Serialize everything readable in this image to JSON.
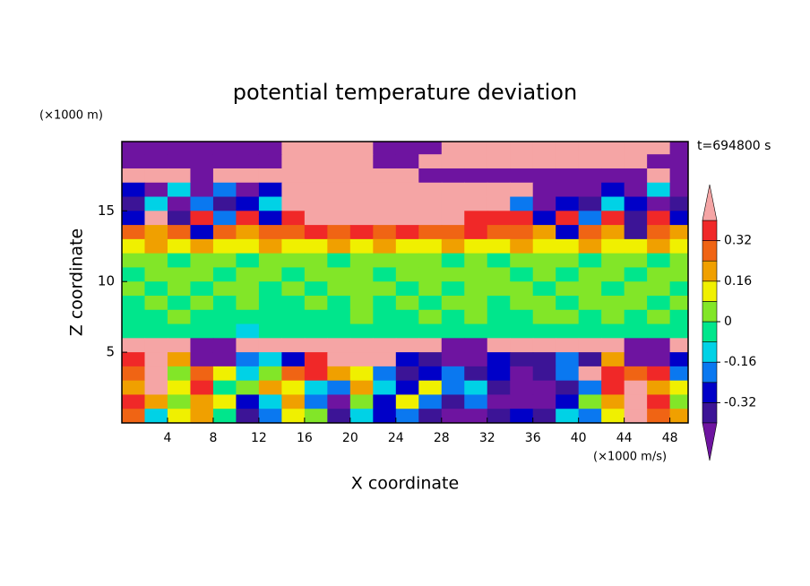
{
  "chart_data": {
    "type": "contour",
    "title": "potential temperature deviation",
    "time_label": "t=694800 s",
    "x_label": "X coordinate",
    "y_label": "Z coordinate",
    "x_unit": "(×1000 m/s)",
    "y_unit": "(×1000 m)",
    "xlim": [
      0,
      49.6
    ],
    "ylim": [
      0,
      19.9
    ],
    "xticks": [
      4,
      8,
      12,
      16,
      20,
      24,
      28,
      32,
      36,
      40,
      44,
      48
    ],
    "yticks": [
      5,
      10,
      15
    ],
    "x": [
      1,
      3,
      5,
      7,
      9,
      11,
      13,
      15,
      17,
      19,
      21,
      23,
      25,
      27,
      29,
      31,
      33,
      35,
      37,
      39,
      41,
      43,
      45,
      47,
      49
    ],
    "y": [
      19.5,
      18.5,
      17.5,
      16.5,
      15.5,
      14.5,
      13.5,
      12.5,
      11.5,
      10.5,
      9.5,
      8.5,
      7.5,
      6.5,
      5.5,
      4.5,
      3.5,
      2.5,
      1.5,
      0.5
    ],
    "levels": [
      -0.4,
      -0.32,
      -0.24,
      -0.16,
      -0.08,
      0,
      0.08,
      0.16,
      0.24,
      0.32,
      0.4
    ],
    "colors": [
      "#6e14a0",
      "#3c1496",
      "#0000c8",
      "#0a78f0",
      "#00d2e6",
      "#00e68c",
      "#82e628",
      "#f0f000",
      "#f0a000",
      "#f06414",
      "#f02828",
      "#f5a5a5"
    ],
    "colorbar_ticks": [
      0.32,
      0.16,
      0,
      -0.16,
      -0.32
    ],
    "z": [
      [
        -0.5,
        -0.5,
        -0.5,
        -0.5,
        -0.5,
        -0.5,
        -0.5,
        0.5,
        0.5,
        0.5,
        0.5,
        -0.5,
        -0.5,
        -0.5,
        0.5,
        0.5,
        0.5,
        0.5,
        0.5,
        0.5,
        0.5,
        0.5,
        0.5,
        0.5,
        -0.5
      ],
      [
        -0.5,
        -0.5,
        -0.5,
        -0.5,
        -0.5,
        -0.5,
        -0.5,
        0.5,
        0.5,
        0.5,
        0.5,
        -0.5,
        -0.5,
        0.5,
        0.5,
        0.5,
        0.5,
        0.5,
        0.5,
        0.5,
        0.5,
        0.5,
        0.5,
        -0.5,
        -0.5
      ],
      [
        0.5,
        0.5,
        0.5,
        -0.5,
        0.5,
        0.5,
        0.5,
        0.5,
        0.5,
        0.5,
        0.5,
        0.5,
        0.5,
        -0.5,
        -0.5,
        -0.5,
        -0.5,
        -0.5,
        -0.5,
        -0.5,
        -0.5,
        -0.5,
        -0.5,
        0.5,
        -0.5
      ],
      [
        -0.28,
        -0.5,
        -0.12,
        -0.5,
        -0.2,
        -0.5,
        -0.28,
        0.5,
        0.5,
        0.5,
        0.5,
        0.5,
        0.5,
        0.5,
        0.5,
        0.5,
        0.5,
        0.5,
        -0.5,
        -0.5,
        -0.5,
        -0.28,
        -0.5,
        -0.12,
        -0.5
      ],
      [
        -0.36,
        -0.12,
        -0.5,
        -0.2,
        -0.36,
        -0.28,
        -0.12,
        0.5,
        0.5,
        0.5,
        0.5,
        0.5,
        0.5,
        0.5,
        0.5,
        0.5,
        0.5,
        -0.2,
        -0.5,
        -0.28,
        -0.36,
        -0.12,
        -0.28,
        -0.5,
        -0.36
      ],
      [
        -0.28,
        0.5,
        -0.36,
        0.36,
        -0.2,
        0.36,
        -0.28,
        0.36,
        0.5,
        0.5,
        0.5,
        0.5,
        0.5,
        0.5,
        0.5,
        0.36,
        0.36,
        0.36,
        -0.28,
        0.36,
        -0.2,
        0.36,
        -0.36,
        0.36,
        -0.28
      ],
      [
        0.28,
        0.2,
        0.28,
        -0.28,
        0.28,
        0.2,
        0.28,
        0.28,
        0.36,
        0.28,
        0.36,
        0.28,
        0.36,
        0.28,
        0.28,
        0.36,
        0.28,
        0.28,
        0.2,
        -0.28,
        0.28,
        0.2,
        -0.36,
        0.28,
        0.2
      ],
      [
        0.12,
        0.2,
        0.12,
        0.2,
        0.12,
        0.12,
        0.2,
        0.12,
        0.12,
        0.2,
        0.12,
        0.2,
        0.12,
        0.12,
        0.2,
        0.12,
        0.12,
        0.2,
        0.12,
        0.12,
        0.2,
        0.12,
        0.12,
        0.2,
        0.12
      ],
      [
        0.04,
        0.04,
        -0.04,
        0.04,
        0.04,
        -0.04,
        0.04,
        0.04,
        0.04,
        -0.04,
        0.04,
        0.04,
        0.04,
        0.04,
        -0.04,
        0.04,
        -0.04,
        0.04,
        0.04,
        0.04,
        -0.04,
        0.04,
        0.04,
        -0.04,
        0.04
      ],
      [
        -0.04,
        0.04,
        0.04,
        0.04,
        -0.04,
        0.04,
        0.04,
        -0.04,
        0.04,
        0.04,
        0.04,
        -0.04,
        0.04,
        0.04,
        0.04,
        0.04,
        0.04,
        -0.04,
        0.04,
        -0.04,
        0.04,
        0.04,
        -0.04,
        0.04,
        0.04
      ],
      [
        0.04,
        -0.04,
        0.04,
        -0.04,
        0.04,
        0.04,
        -0.04,
        0.04,
        -0.04,
        0.04,
        0.04,
        0.04,
        -0.04,
        0.04,
        -0.04,
        0.04,
        0.04,
        0.04,
        -0.04,
        0.04,
        0.04,
        -0.04,
        0.04,
        0.04,
        -0.04
      ],
      [
        -0.04,
        0.04,
        -0.04,
        0.04,
        -0.04,
        0.04,
        -0.04,
        -0.04,
        0.04,
        -0.04,
        0.04,
        -0.04,
        0.04,
        -0.04,
        0.04,
        0.04,
        -0.04,
        0.04,
        0.04,
        -0.04,
        0.04,
        0.04,
        0.04,
        -0.04,
        0.04
      ],
      [
        -0.04,
        -0.04,
        0.04,
        -0.04,
        -0.04,
        -0.04,
        -0.04,
        -0.04,
        -0.04,
        -0.04,
        0.04,
        -0.04,
        -0.04,
        0.04,
        -0.04,
        0.04,
        -0.04,
        -0.04,
        0.04,
        0.04,
        -0.04,
        0.04,
        -0.04,
        0.04,
        -0.04
      ],
      [
        -0.04,
        -0.04,
        -0.04,
        -0.04,
        -0.04,
        -0.12,
        -0.04,
        -0.04,
        -0.04,
        -0.04,
        -0.04,
        -0.04,
        -0.04,
        -0.04,
        -0.04,
        -0.04,
        -0.04,
        -0.04,
        -0.04,
        -0.04,
        -0.04,
        -0.04,
        -0.04,
        -0.04,
        -0.04
      ],
      [
        0.5,
        0.5,
        0.5,
        -0.5,
        -0.5,
        0.5,
        0.5,
        0.5,
        0.5,
        0.5,
        0.5,
        0.5,
        0.5,
        0.5,
        -0.5,
        -0.5,
        0.5,
        0.5,
        0.5,
        0.5,
        0.5,
        0.5,
        -0.5,
        -0.5,
        0.5
      ],
      [
        0.36,
        0.5,
        0.2,
        -0.5,
        -0.5,
        -0.2,
        -0.12,
        -0.28,
        0.36,
        0.5,
        0.5,
        0.5,
        -0.28,
        -0.36,
        -0.5,
        -0.5,
        -0.28,
        -0.36,
        -0.36,
        -0.2,
        -0.36,
        0.2,
        -0.5,
        -0.5,
        -0.28
      ],
      [
        0.28,
        0.5,
        0.04,
        0.28,
        0.12,
        -0.12,
        0.04,
        0.28,
        0.36,
        0.2,
        0.12,
        -0.2,
        -0.36,
        -0.28,
        -0.2,
        -0.36,
        -0.28,
        -0.5,
        -0.36,
        -0.2,
        0.5,
        0.36,
        0.28,
        0.36,
        -0.2
      ],
      [
        0.2,
        0.5,
        0.12,
        0.36,
        -0.04,
        0.04,
        0.2,
        0.12,
        -0.12,
        -0.2,
        0.2,
        -0.12,
        -0.28,
        0.12,
        -0.2,
        -0.12,
        -0.36,
        -0.5,
        -0.5,
        -0.36,
        -0.2,
        0.36,
        0.5,
        0.2,
        0.12
      ],
      [
        0.36,
        0.2,
        0.04,
        0.2,
        0.12,
        -0.28,
        -0.12,
        0.2,
        -0.2,
        -0.5,
        0.04,
        -0.28,
        0.12,
        -0.2,
        -0.36,
        -0.2,
        -0.5,
        -0.5,
        -0.5,
        -0.28,
        0.04,
        0.2,
        0.5,
        0.36,
        0.04
      ],
      [
        0.28,
        -0.12,
        0.12,
        0.2,
        -0.04,
        -0.36,
        -0.2,
        0.12,
        0.04,
        -0.36,
        -0.12,
        -0.28,
        -0.2,
        -0.36,
        -0.5,
        -0.5,
        -0.36,
        -0.28,
        -0.36,
        -0.12,
        -0.2,
        0.12,
        0.5,
        0.28,
        0.2
      ]
    ]
  }
}
